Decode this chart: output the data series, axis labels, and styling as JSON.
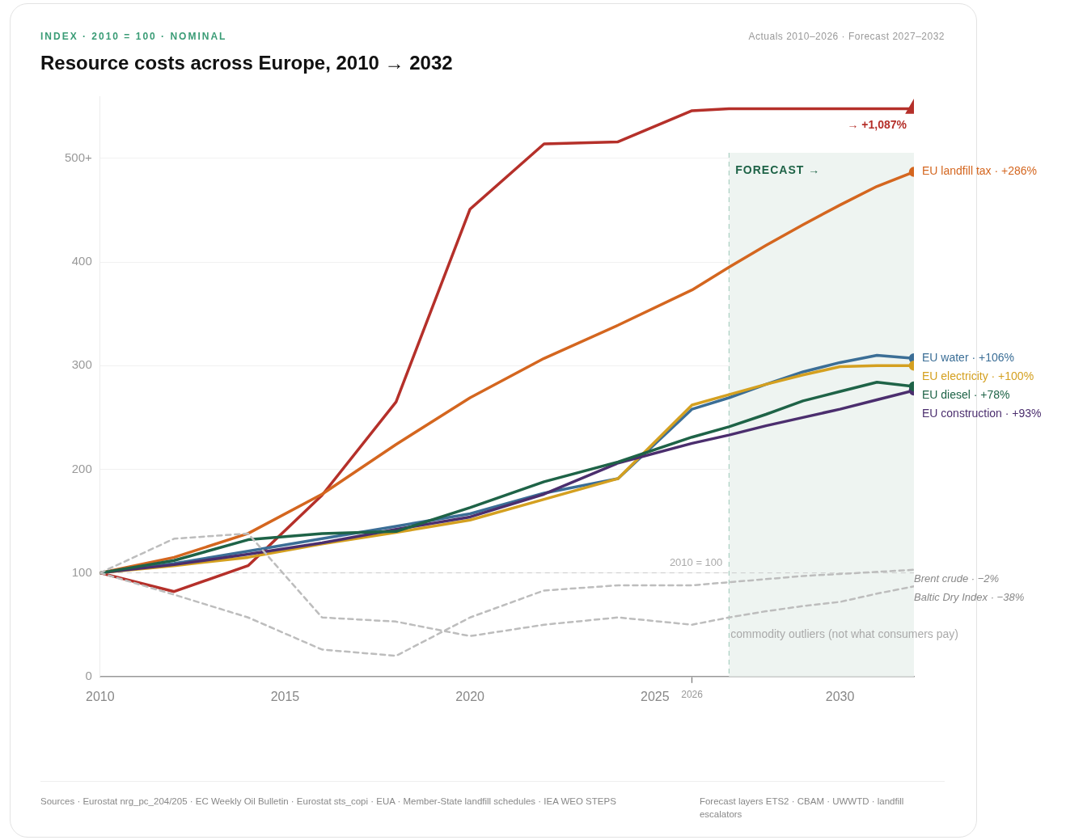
{
  "chart_data": {
    "type": "line",
    "subtitle": "INDEX · 2010 = 100 · NOMINAL",
    "title": "Resource costs across Europe, 2010 → 2032",
    "x": [
      2010,
      2012,
      2014,
      2016,
      2018,
      2020,
      2022,
      2024,
      2026,
      2027,
      2028,
      2029,
      2030,
      2031,
      2032
    ],
    "xlim": [
      2010,
      2032
    ],
    "xticks": [
      2010,
      2015,
      2020,
      2025,
      2030,
      {
        "value": 2026,
        "label": "2026"
      }
    ],
    "ylim": [
      0,
      560
    ],
    "yticks": [
      0,
      100,
      200,
      300,
      400,
      {
        "value": 500,
        "label": "500+"
      }
    ],
    "grid": "y",
    "legend": false,
    "series": [
      {
        "name": "Brent crude · −2%",
        "color": "#bdbdbd",
        "line_style": "dashed",
        "values": [
          100,
          79,
          57,
          26,
          20,
          57,
          83,
          88,
          88,
          91,
          94,
          97,
          99,
          101,
          103
        ]
      },
      {
        "name": "Baltic Dry Index · −38%",
        "color": "#bdbdbd",
        "line_style": "dashed",
        "values": [
          100,
          133,
          138,
          57,
          53,
          39,
          50,
          57,
          50,
          57,
          63,
          68,
          72,
          80,
          87
        ]
      },
      {
        "name": "EU diesel · +78%",
        "color": "#1e6347",
        "values": [
          100,
          112,
          132,
          138,
          140,
          163,
          188,
          207,
          231,
          241,
          253,
          266,
          275,
          284,
          280
        ]
      },
      {
        "name": "EU construction · +93%",
        "color": "#4b2e6e",
        "values": [
          100,
          108,
          118,
          129,
          142,
          154,
          176,
          206,
          225,
          233,
          242,
          250,
          258,
          267,
          276
        ]
      },
      {
        "name": "EU electricity · +100%",
        "color": "#d4a020",
        "values": [
          100,
          107,
          115,
          128,
          139,
          151,
          171,
          191,
          262,
          272,
          282,
          291,
          299,
          300,
          300
        ]
      },
      {
        "name": "EU water · +106%",
        "color": "#3b6e96",
        "values": [
          100,
          109,
          121,
          133,
          145,
          157,
          177,
          191,
          258,
          269,
          282,
          294,
          303,
          310,
          307
        ]
      },
      {
        "name": "EU landfill tax · +286%",
        "color": "#d4661f",
        "values": [
          100,
          115,
          138,
          176,
          224,
          269,
          307,
          339,
          373,
          395,
          416,
          436,
          455,
          473,
          487
        ]
      },
      {
        "color": "#b5302a",
        "values": [
          100,
          82,
          107,
          175,
          265,
          451,
          514,
          516,
          546,
          548,
          548,
          548,
          548,
          548,
          548
        ]
      }
    ],
    "ref_lines": [
      {
        "axis": "y",
        "value": 100,
        "label": "2010 = 100",
        "color": "#cccccc",
        "line_style": "dashed"
      },
      {
        "axis": "x",
        "value": 2027,
        "color": "#9cc8b8",
        "line_style": "dashed"
      }
    ],
    "bands": [
      {
        "axis": "x",
        "from": 2027,
        "to": 2032,
        "label": "FORECAST →",
        "color": "#eef4f1"
      }
    ],
    "annotations": [
      "Actuals 2010–2026 · Forecast 2027–2032",
      {
        "text": "→ +1,087%",
        "x": 2031,
        "y": 548
      },
      {
        "text": "commodity outliers (not what consumers pay)",
        "x": 2027,
        "y": 40
      },
      "Sources · Eurostat nrg_pc_204/205 · EC Weekly Oil Bulletin · Eurostat sts_copi · EUA · Member-State landfill schedules · IEA WEO STEPS",
      "Forecast layers ETS2 · CBAM · UWWTD · landfill escalators"
    ]
  }
}
